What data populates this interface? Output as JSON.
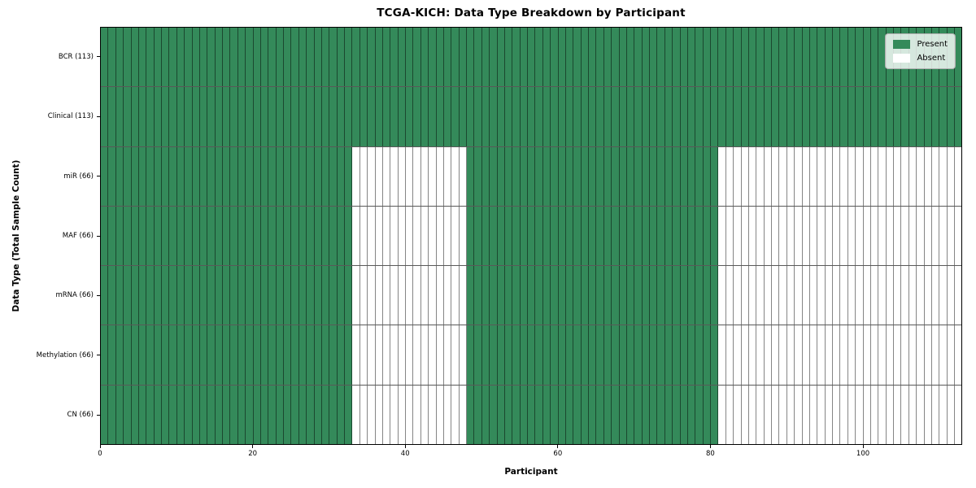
{
  "chart_data": {
    "type": "heatmap",
    "title": "TCGA-KICH: Data Type Breakdown by Participant",
    "xlabel": "Participant",
    "ylabel": "Data Type (Total Sample Count)",
    "n_participants": 113,
    "xlim": [
      0,
      113
    ],
    "x_ticks": [
      0,
      20,
      40,
      60,
      80,
      100
    ],
    "grid": "cell-borders",
    "legend_position": "upper-right",
    "rows": [
      {
        "data_type": "BCR",
        "label": "BCR (113)",
        "total_samples": 113,
        "present_ranges": [
          [
            0,
            113
          ]
        ]
      },
      {
        "data_type": "Clinical",
        "label": "Clinical (113)",
        "total_samples": 113,
        "present_ranges": [
          [
            0,
            113
          ]
        ]
      },
      {
        "data_type": "miR",
        "label": "miR (66)",
        "total_samples": 66,
        "present_ranges": [
          [
            0,
            33
          ],
          [
            48,
            81
          ]
        ]
      },
      {
        "data_type": "MAF",
        "label": "MAF (66)",
        "total_samples": 66,
        "present_ranges": [
          [
            0,
            33
          ],
          [
            48,
            81
          ]
        ]
      },
      {
        "data_type": "mRNA",
        "label": "mRNA (66)",
        "total_samples": 66,
        "present_ranges": [
          [
            0,
            33
          ],
          [
            48,
            81
          ]
        ]
      },
      {
        "data_type": "Methylation",
        "label": "Methylation (66)",
        "total_samples": 66,
        "present_ranges": [
          [
            0,
            33
          ],
          [
            48,
            81
          ]
        ]
      },
      {
        "data_type": "CN",
        "label": "CN (66)",
        "total_samples": 66,
        "present_ranges": [
          [
            0,
            33
          ],
          [
            48,
            81
          ]
        ]
      }
    ],
    "legend": [
      {
        "label": "Present",
        "color": "#348a5a"
      },
      {
        "label": "Absent",
        "color": "#ffffff"
      }
    ],
    "colors": {
      "present": "#348a5a",
      "absent": "#ffffff",
      "frame": "#000000",
      "cell_border": "rgba(0,0,0,0.48)",
      "row_separator": "rgba(0,0,0,0.65)"
    }
  }
}
